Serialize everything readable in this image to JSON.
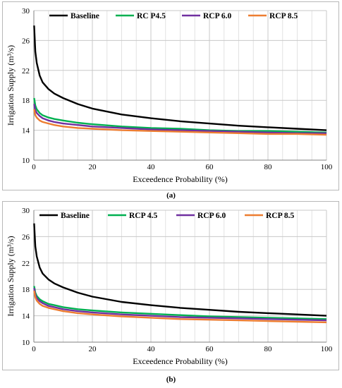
{
  "chart_data": [
    {
      "type": "line",
      "caption": "(a)",
      "title": "",
      "xlabel": "Exceedence Probability (%)",
      "ylabel": "Irrigation Supply (m³/s)",
      "xlim": [
        0,
        100
      ],
      "ylim": [
        10,
        30
      ],
      "xticks": [
        0,
        20,
        40,
        60,
        80,
        100
      ],
      "yticks": [
        10,
        14,
        18,
        22,
        26,
        30
      ],
      "grid": true,
      "legend": "top",
      "series": [
        {
          "name": "Baseline",
          "color": "#000000",
          "x": [
            0.1,
            0.5,
            1,
            2,
            3,
            5,
            7,
            10,
            15,
            20,
            30,
            40,
            50,
            60,
            70,
            80,
            90,
            100
          ],
          "y": [
            28.0,
            24.5,
            23.0,
            21.3,
            20.4,
            19.5,
            18.9,
            18.3,
            17.5,
            16.9,
            16.1,
            15.6,
            15.2,
            14.9,
            14.6,
            14.4,
            14.2,
            14.0
          ]
        },
        {
          "name": "RC P4.5",
          "color": "#00b050",
          "x": [
            0.1,
            0.5,
            1,
            2,
            3,
            5,
            7,
            10,
            15,
            20,
            30,
            40,
            50,
            60,
            70,
            80,
            90,
            100
          ],
          "y": [
            18.3,
            17.3,
            16.8,
            16.3,
            16.0,
            15.7,
            15.5,
            15.3,
            15.0,
            14.8,
            14.5,
            14.3,
            14.2,
            14.0,
            13.9,
            13.9,
            13.8,
            13.7
          ]
        },
        {
          "name": "RCP 6.0",
          "color": "#7030a0",
          "x": [
            0.1,
            0.5,
            1,
            2,
            3,
            5,
            7,
            10,
            15,
            20,
            30,
            40,
            50,
            60,
            70,
            80,
            90,
            100
          ],
          "y": [
            17.5,
            16.7,
            16.3,
            15.9,
            15.6,
            15.3,
            15.1,
            14.9,
            14.7,
            14.5,
            14.3,
            14.1,
            14.0,
            13.9,
            13.8,
            13.7,
            13.6,
            13.6
          ]
        },
        {
          "name": "RCP 8.5",
          "color": "#ed7d31",
          "x": [
            0.1,
            0.5,
            1,
            2,
            3,
            5,
            7,
            10,
            15,
            20,
            30,
            40,
            50,
            60,
            70,
            80,
            90,
            100
          ],
          "y": [
            16.8,
            16.0,
            15.7,
            15.3,
            15.1,
            14.9,
            14.7,
            14.5,
            14.3,
            14.2,
            14.0,
            13.9,
            13.8,
            13.7,
            13.6,
            13.5,
            13.5,
            13.4
          ]
        }
      ]
    },
    {
      "type": "line",
      "caption": "(b)",
      "title": "",
      "xlabel": "Exceedence Probability (%)",
      "ylabel": "Irrigation Supply (m³/s)",
      "xlim": [
        0,
        100
      ],
      "ylim": [
        10,
        30
      ],
      "xticks": [
        0,
        20,
        40,
        60,
        80,
        100
      ],
      "yticks": [
        10,
        14,
        18,
        22,
        26,
        30
      ],
      "grid": true,
      "legend": "top",
      "series": [
        {
          "name": "Baseline",
          "color": "#000000",
          "x": [
            0.1,
            0.5,
            1,
            2,
            3,
            5,
            7,
            10,
            15,
            20,
            30,
            40,
            50,
            60,
            70,
            80,
            90,
            100
          ],
          "y": [
            28.0,
            24.5,
            23.0,
            21.3,
            20.4,
            19.5,
            18.9,
            18.3,
            17.5,
            16.9,
            16.1,
            15.6,
            15.2,
            14.9,
            14.6,
            14.4,
            14.2,
            14.0
          ]
        },
        {
          "name": "RCP 4.5",
          "color": "#00b050",
          "x": [
            0.1,
            0.5,
            1,
            2,
            3,
            5,
            7,
            10,
            15,
            20,
            30,
            40,
            50,
            60,
            70,
            80,
            90,
            100
          ],
          "y": [
            18.5,
            17.5,
            17.0,
            16.5,
            16.2,
            15.8,
            15.6,
            15.3,
            15.0,
            14.8,
            14.5,
            14.3,
            14.1,
            13.9,
            13.8,
            13.7,
            13.6,
            13.5
          ]
        },
        {
          "name": "RCP 6.0",
          "color": "#7030a0",
          "x": [
            0.1,
            0.5,
            1,
            2,
            3,
            5,
            7,
            10,
            15,
            20,
            30,
            40,
            50,
            60,
            70,
            80,
            90,
            100
          ],
          "y": [
            18.2,
            17.2,
            16.7,
            16.2,
            15.9,
            15.5,
            15.3,
            15.0,
            14.7,
            14.5,
            14.2,
            14.0,
            13.8,
            13.7,
            13.6,
            13.5,
            13.4,
            13.3
          ]
        },
        {
          "name": "RCP 8.5",
          "color": "#ed7d31",
          "x": [
            0.1,
            0.5,
            1,
            2,
            3,
            5,
            7,
            10,
            15,
            20,
            30,
            40,
            50,
            60,
            70,
            80,
            90,
            100
          ],
          "y": [
            17.8,
            16.8,
            16.3,
            15.8,
            15.5,
            15.2,
            15.0,
            14.7,
            14.4,
            14.2,
            13.9,
            13.7,
            13.5,
            13.4,
            13.3,
            13.2,
            13.1,
            13.0
          ]
        }
      ]
    }
  ]
}
